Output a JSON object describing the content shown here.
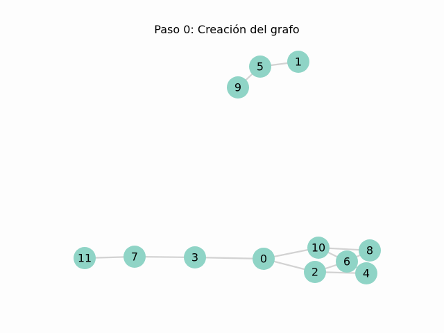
{
  "title": "Paso 0: Creación del grafo",
  "colors": {
    "node_fill": "#8fd4c6",
    "edge": "#d2d2d2",
    "background": "#fdfdfd"
  },
  "graph": {
    "nodes": [
      "0",
      "1",
      "2",
      "3",
      "4",
      "5",
      "6",
      "7",
      "8",
      "9",
      "10",
      "11"
    ],
    "edges": [
      [
        "0",
        "3"
      ],
      [
        "0",
        "10"
      ],
      [
        "0",
        "2"
      ],
      [
        "3",
        "7"
      ],
      [
        "7",
        "11"
      ],
      [
        "10",
        "8"
      ],
      [
        "10",
        "6"
      ],
      [
        "2",
        "6"
      ],
      [
        "2",
        "4"
      ],
      [
        "6",
        "8"
      ],
      [
        "6",
        "4"
      ],
      [
        "5",
        "1"
      ],
      [
        "5",
        "9"
      ]
    ]
  }
}
